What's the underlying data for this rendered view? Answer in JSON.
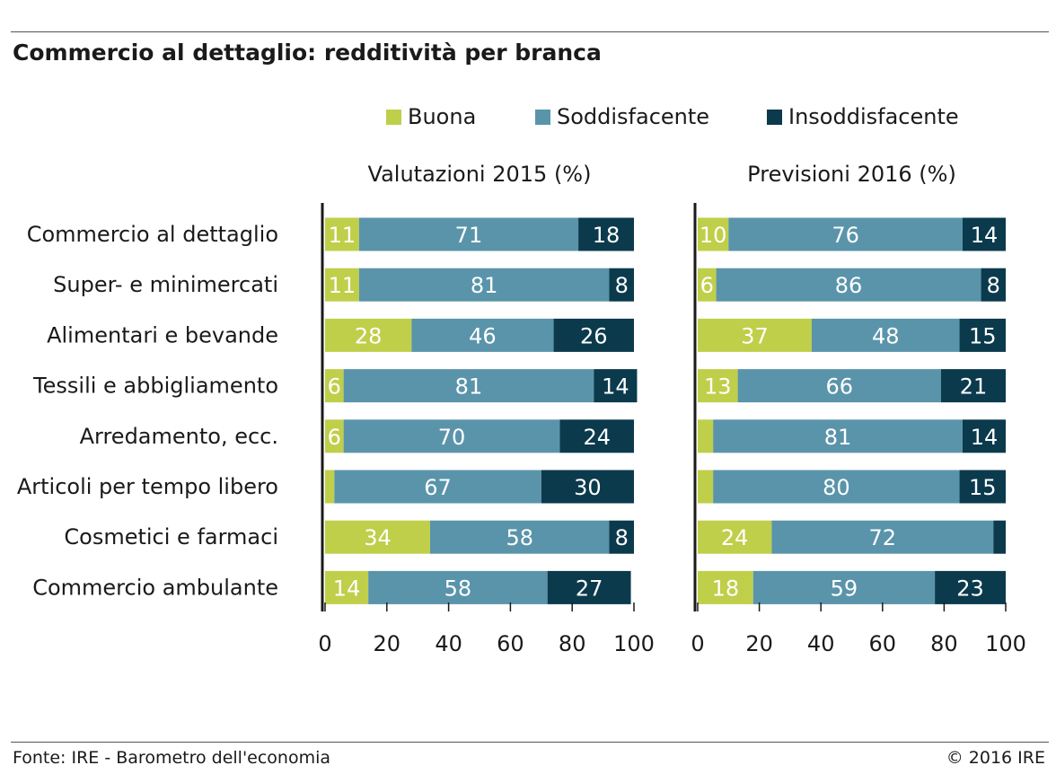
{
  "title": "Commercio al dettaglio: redditività per branca",
  "source": "Fonte: IRE - Barometro dell'economia",
  "copyright": "© 2016 IRE",
  "colors": {
    "buona": "#bfcf4a",
    "soddisfacente": "#5a94aa",
    "insoddisfacente": "#0b3a4d",
    "axis": "#1a1a1a"
  },
  "legend": [
    {
      "label": "Buona",
      "color": "#bfcf4a"
    },
    {
      "label": "Soddisfacente",
      "color": "#5a94aa"
    },
    {
      "label": "Insoddisfacente",
      "color": "#0b3a4d"
    }
  ],
  "chart_data": [
    {
      "type": "bar",
      "orientation": "horizontal",
      "stacked": true,
      "title": "Valutazioni 2015 (%)",
      "categories": [
        "Commercio al dettaglio",
        "Super- e minimercati",
        "Alimentari e bevande",
        "Tessili e abbigliamento",
        "Arredamento, ecc.",
        "Articoli per tempo libero",
        "Cosmetici e farmaci",
        "Commercio ambulante"
      ],
      "series": [
        {
          "name": "Buona",
          "values": [
            11,
            11,
            28,
            6,
            6,
            3,
            34,
            14
          ],
          "labels": [
            "11",
            "11",
            "28",
            "6",
            "6",
            "",
            "34",
            "14"
          ]
        },
        {
          "name": "Soddisfacente",
          "values": [
            71,
            81,
            46,
            81,
            70,
            67,
            58,
            58
          ],
          "labels": [
            "71",
            "81",
            "46",
            "81",
            "70",
            "67",
            "58",
            "58"
          ]
        },
        {
          "name": "Insoddisfacente",
          "values": [
            18,
            8,
            26,
            14,
            24,
            30,
            8,
            27
          ],
          "labels": [
            "18",
            "8",
            "26",
            "14",
            "24",
            "30",
            "8",
            "27"
          ]
        }
      ],
      "xlim": [
        0,
        100
      ],
      "xticks": [
        0,
        20,
        40,
        60,
        80,
        100
      ]
    },
    {
      "type": "bar",
      "orientation": "horizontal",
      "stacked": true,
      "title": "Previsioni 2016 (%)",
      "categories": [
        "Commercio al dettaglio",
        "Super- e minimercati",
        "Alimentari e bevande",
        "Tessili e abbigliamento",
        "Arredamento, ecc.",
        "Articoli per tempo libero",
        "Cosmetici e farmaci",
        "Commercio ambulante"
      ],
      "series": [
        {
          "name": "Buona",
          "values": [
            10,
            6,
            37,
            13,
            5,
            5,
            24,
            18
          ],
          "labels": [
            "10",
            "6",
            "37",
            "13",
            "",
            "",
            "24",
            "18"
          ]
        },
        {
          "name": "Soddisfacente",
          "values": [
            76,
            86,
            48,
            66,
            81,
            80,
            72,
            59
          ],
          "labels": [
            "76",
            "86",
            "48",
            "66",
            "81",
            "80",
            "72",
            "59"
          ]
        },
        {
          "name": "Insoddisfacente",
          "values": [
            14,
            8,
            15,
            21,
            14,
            15,
            4,
            23
          ],
          "labels": [
            "14",
            "8",
            "15",
            "21",
            "14",
            "15",
            "",
            "23"
          ]
        }
      ],
      "xlim": [
        0,
        100
      ],
      "xticks": [
        0,
        20,
        40,
        60,
        80,
        100
      ]
    }
  ]
}
